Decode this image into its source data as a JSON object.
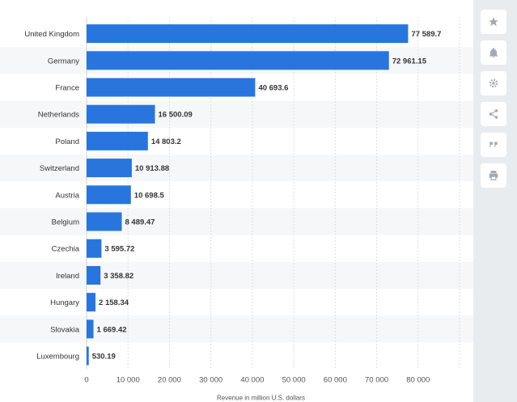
{
  "chart_data": {
    "type": "bar",
    "orientation": "horizontal",
    "categories": [
      "United Kingdom",
      "Germany",
      "France",
      "Netherlands",
      "Poland",
      "Switzerland",
      "Austria",
      "Belgium",
      "Czechia",
      "Ireland",
      "Hungary",
      "Slovakia",
      "Luxembourg"
    ],
    "values": [
      77589.7,
      72961.15,
      40693.6,
      16500.09,
      14803.2,
      10913.88,
      10698.5,
      8489.47,
      3595.72,
      3358.82,
      2158.34,
      1669.42,
      530.19
    ],
    "value_labels": [
      "77 589.7",
      "72 961.15",
      "40 693.6",
      "16 500.09",
      "14 803.2",
      "10 913.88",
      "10 698.5",
      "8 489.47",
      "3 595.72",
      "3 358.82",
      "2 158.34",
      "1 669.42",
      "530.19"
    ],
    "xticks": [
      0,
      10000,
      20000,
      30000,
      40000,
      50000,
      60000,
      70000,
      80000
    ],
    "xtick_labels": [
      "0",
      "10 000",
      "20 000",
      "30 000",
      "40 000",
      "50 000",
      "60 000",
      "70 000",
      "80 000"
    ],
    "xlim": [
      0,
      90000
    ],
    "xlabel": "Revenue in million U.S. dollars",
    "ylabel": "",
    "title": "",
    "grid": true,
    "bar_color": "#2876dd",
    "alt_row_color": "#f6f7f9"
  },
  "toolbar": [
    {
      "name": "star-icon"
    },
    {
      "name": "bell-icon"
    },
    {
      "name": "gear-icon"
    },
    {
      "name": "share-icon"
    },
    {
      "name": "quote-icon"
    },
    {
      "name": "print-icon"
    }
  ]
}
